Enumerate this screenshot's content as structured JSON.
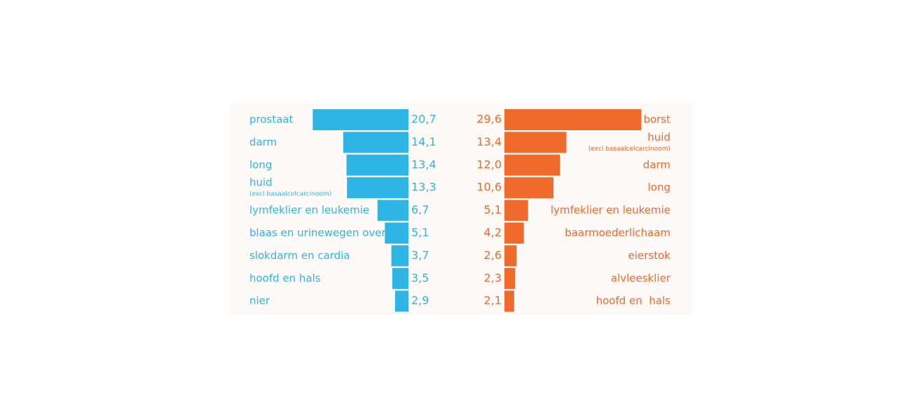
{
  "chart_data": [
    {
      "type": "bar",
      "orientation": "horizontal",
      "direction": "left",
      "color": "#2fb5e5",
      "categories": [
        "prostaat",
        "darm",
        "long",
        "huid",
        "lymfeklier en leukemie",
        "blaas en urinewegen overig",
        "slokdarm en cardia",
        "hoofd en hals",
        "nier"
      ],
      "category_notes": [
        null,
        null,
        null,
        "(excl basaalcelcarcinoom)",
        null,
        null,
        null,
        null,
        null
      ],
      "values": [
        20.7,
        14.1,
        13.4,
        13.3,
        6.7,
        5.1,
        3.7,
        3.5,
        2.9
      ],
      "value_labels": [
        "20,7",
        "14,1",
        "13,4",
        "13,3",
        "6,7",
        "5,1",
        "3,7",
        "3,5",
        "2,9"
      ]
    },
    {
      "type": "bar",
      "orientation": "horizontal",
      "direction": "right",
      "color": "#f06a2c",
      "categories": [
        "borst",
        "huid",
        "darm",
        "long",
        "lymfeklier en leukemie",
        "baarmoederlichaam",
        "eierstok",
        "alvleesklier",
        "hoofd en  hals"
      ],
      "category_notes": [
        null,
        "(excl basaalcelcarcinoom)",
        null,
        null,
        null,
        null,
        null,
        null,
        null
      ],
      "values": [
        29.6,
        13.4,
        12,
        10.6,
        5.1,
        4.2,
        2.6,
        2.3,
        2.1
      ],
      "value_labels": [
        "29,6",
        "13,4",
        "12,0",
        "10,6",
        "5,1",
        "4,2",
        "2,6",
        "2,3",
        "2,1"
      ]
    }
  ]
}
